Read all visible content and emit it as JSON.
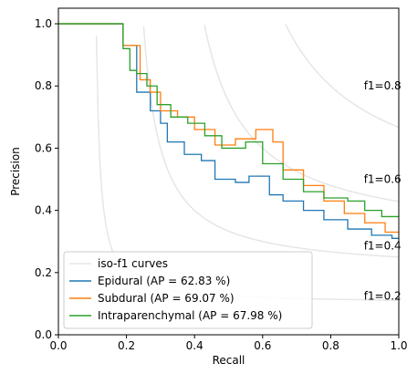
{
  "chart_data": {
    "type": "line",
    "title": "",
    "xlabel": "Recall",
    "ylabel": "Precision",
    "xlim": [
      0.0,
      1.0
    ],
    "ylim": [
      0.0,
      1.05
    ],
    "xticks": [
      "0.0",
      "0.2",
      "0.4",
      "0.6",
      "0.8",
      "1.0"
    ],
    "yticks": [
      "0.0",
      "0.2",
      "0.4",
      "0.6",
      "0.8",
      "1.0"
    ],
    "grid": false,
    "legend_position": "lower-left",
    "iso_f1": {
      "legend_label": "iso-f1 curves",
      "color": "#e6e6e6",
      "levels": [
        0.2,
        0.4,
        0.6,
        0.8
      ],
      "labels": [
        "f1=0.2",
        "f1=0.4",
        "f1=0.6",
        "f1=0.8"
      ]
    },
    "series": [
      {
        "name": "Epidural (AP = 62.83 %)",
        "color": "#1f77b4",
        "points": [
          [
            0.0,
            1.0
          ],
          [
            0.19,
            1.0
          ],
          [
            0.19,
            0.93
          ],
          [
            0.23,
            0.93
          ],
          [
            0.23,
            0.78
          ],
          [
            0.27,
            0.78
          ],
          [
            0.27,
            0.72
          ],
          [
            0.3,
            0.72
          ],
          [
            0.3,
            0.68
          ],
          [
            0.32,
            0.68
          ],
          [
            0.32,
            0.62
          ],
          [
            0.37,
            0.62
          ],
          [
            0.37,
            0.58
          ],
          [
            0.42,
            0.58
          ],
          [
            0.42,
            0.56
          ],
          [
            0.46,
            0.56
          ],
          [
            0.46,
            0.5
          ],
          [
            0.52,
            0.5
          ],
          [
            0.52,
            0.49
          ],
          [
            0.56,
            0.49
          ],
          [
            0.56,
            0.51
          ],
          [
            0.62,
            0.51
          ],
          [
            0.62,
            0.45
          ],
          [
            0.66,
            0.45
          ],
          [
            0.66,
            0.43
          ],
          [
            0.72,
            0.43
          ],
          [
            0.72,
            0.4
          ],
          [
            0.78,
            0.4
          ],
          [
            0.78,
            0.37
          ],
          [
            0.85,
            0.37
          ],
          [
            0.85,
            0.34
          ],
          [
            0.92,
            0.34
          ],
          [
            0.92,
            0.32
          ],
          [
            0.98,
            0.32
          ],
          [
            0.98,
            0.31
          ],
          [
            1.0,
            0.31
          ]
        ]
      },
      {
        "name": "Subdural (AP = 69.07 %)",
        "color": "#ff7f0e",
        "points": [
          [
            0.0,
            1.0
          ],
          [
            0.19,
            1.0
          ],
          [
            0.19,
            0.93
          ],
          [
            0.24,
            0.93
          ],
          [
            0.24,
            0.82
          ],
          [
            0.27,
            0.82
          ],
          [
            0.27,
            0.78
          ],
          [
            0.3,
            0.78
          ],
          [
            0.3,
            0.72
          ],
          [
            0.35,
            0.72
          ],
          [
            0.35,
            0.7
          ],
          [
            0.4,
            0.7
          ],
          [
            0.4,
            0.66
          ],
          [
            0.46,
            0.66
          ],
          [
            0.46,
            0.61
          ],
          [
            0.52,
            0.61
          ],
          [
            0.52,
            0.63
          ],
          [
            0.58,
            0.63
          ],
          [
            0.58,
            0.66
          ],
          [
            0.63,
            0.66
          ],
          [
            0.63,
            0.62
          ],
          [
            0.66,
            0.62
          ],
          [
            0.66,
            0.53
          ],
          [
            0.72,
            0.53
          ],
          [
            0.72,
            0.48
          ],
          [
            0.78,
            0.48
          ],
          [
            0.78,
            0.43
          ],
          [
            0.84,
            0.43
          ],
          [
            0.84,
            0.39
          ],
          [
            0.9,
            0.39
          ],
          [
            0.9,
            0.36
          ],
          [
            0.96,
            0.36
          ],
          [
            0.96,
            0.33
          ],
          [
            1.0,
            0.33
          ]
        ]
      },
      {
        "name": "Intraparenchymal (AP = 67.98 %)",
        "color": "#2ca02c",
        "points": [
          [
            0.0,
            1.0
          ],
          [
            0.19,
            1.0
          ],
          [
            0.19,
            0.92
          ],
          [
            0.21,
            0.92
          ],
          [
            0.21,
            0.85
          ],
          [
            0.23,
            0.85
          ],
          [
            0.23,
            0.84
          ],
          [
            0.26,
            0.84
          ],
          [
            0.26,
            0.8
          ],
          [
            0.29,
            0.8
          ],
          [
            0.29,
            0.74
          ],
          [
            0.33,
            0.74
          ],
          [
            0.33,
            0.7
          ],
          [
            0.38,
            0.7
          ],
          [
            0.38,
            0.68
          ],
          [
            0.43,
            0.68
          ],
          [
            0.43,
            0.64
          ],
          [
            0.48,
            0.64
          ],
          [
            0.48,
            0.6
          ],
          [
            0.55,
            0.6
          ],
          [
            0.55,
            0.62
          ],
          [
            0.6,
            0.62
          ],
          [
            0.6,
            0.55
          ],
          [
            0.66,
            0.55
          ],
          [
            0.66,
            0.5
          ],
          [
            0.72,
            0.5
          ],
          [
            0.72,
            0.46
          ],
          [
            0.78,
            0.46
          ],
          [
            0.78,
            0.44
          ],
          [
            0.85,
            0.44
          ],
          [
            0.85,
            0.43
          ],
          [
            0.9,
            0.43
          ],
          [
            0.9,
            0.4
          ],
          [
            0.95,
            0.4
          ],
          [
            0.95,
            0.38
          ],
          [
            1.0,
            0.38
          ]
        ]
      }
    ]
  }
}
